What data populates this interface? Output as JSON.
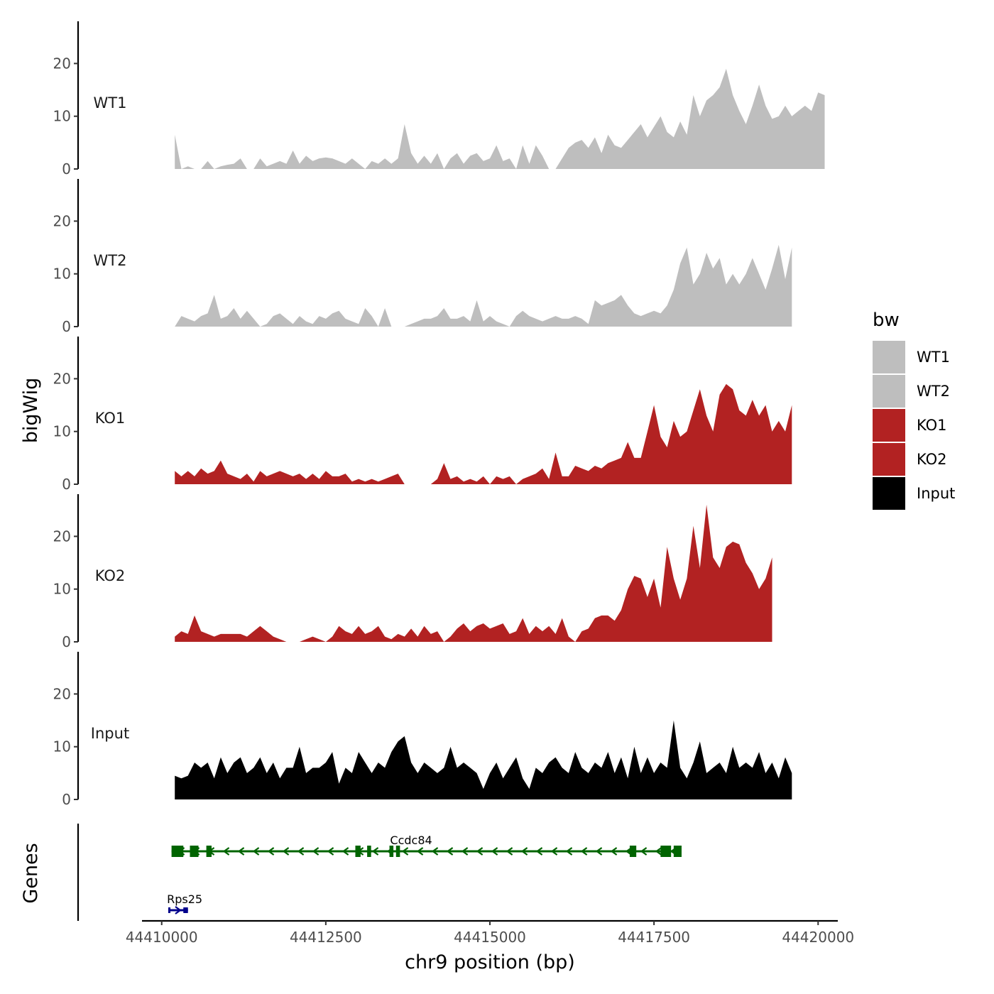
{
  "chart_data": {
    "type": "area",
    "title": "",
    "xlabel": "chr9 position (bp)",
    "ylabel": "bigWig",
    "genes_label": "Genes",
    "xlim": [
      44409700,
      44420300
    ],
    "xticks": [
      44410000,
      44412500,
      44415000,
      44417500,
      44420000
    ],
    "xtick_labels": [
      "44410000",
      "44412500",
      "44415000",
      "44417500",
      "44420000"
    ],
    "ylim": [
      0,
      28
    ],
    "yticks": [
      0,
      10,
      20
    ],
    "ytick_labels": [
      "0",
      "10",
      "20"
    ],
    "legend": {
      "title": "bw",
      "position": "right",
      "entries": [
        {
          "label": "WT1",
          "color": "#bebebe"
        },
        {
          "label": "WT2",
          "color": "#bebebe"
        },
        {
          "label": "KO1",
          "color": "#b22222"
        },
        {
          "label": "KO2",
          "color": "#b22222"
        },
        {
          "label": "Input",
          "color": "#000000"
        }
      ]
    },
    "series": [
      {
        "name": "WT1",
        "color": "#bebebe",
        "x_start": 44410200,
        "x_step": 100,
        "values": [
          6.5,
          0,
          0.5,
          0,
          0,
          1.5,
          0,
          0.5,
          0.8,
          1,
          2,
          0,
          0,
          2,
          0.5,
          1,
          1.5,
          1,
          3.5,
          1,
          2.5,
          1.5,
          2,
          2.2,
          2,
          1.5,
          1,
          2,
          1,
          0,
          1.5,
          1,
          2,
          1,
          2,
          8.5,
          3,
          1,
          2.5,
          1,
          3,
          0,
          2,
          3,
          1,
          2.5,
          3,
          1.5,
          2,
          4.5,
          1.5,
          2,
          0,
          4.5,
          1,
          4.5,
          2.5,
          0,
          0,
          2,
          4,
          5,
          5.5,
          4,
          6,
          3,
          6.5,
          4.5,
          4,
          5.5,
          7,
          8.5,
          6,
          8,
          10,
          7,
          6,
          9,
          6.5,
          14,
          10,
          13,
          14,
          15.5,
          19,
          14,
          11,
          8.5,
          12,
          16,
          12,
          9.5,
          10,
          12,
          10,
          11,
          12,
          11,
          14.5,
          14
        ]
      },
      {
        "name": "WT2",
        "color": "#bebebe",
        "x_start": 44410200,
        "x_step": 100,
        "values": [
          0,
          2,
          1.5,
          1,
          2,
          2.5,
          6,
          1.5,
          2,
          3.5,
          1.5,
          3,
          1.5,
          0,
          0.5,
          2,
          2.5,
          1.5,
          0.5,
          2,
          1,
          0.5,
          2,
          1.5,
          2.5,
          3,
          1.5,
          1,
          0.5,
          3.5,
          2,
          0,
          3.5,
          0,
          0,
          0,
          0.5,
          1,
          1.5,
          1.5,
          2,
          3.5,
          1.5,
          1.5,
          2,
          1,
          5,
          1,
          2,
          1,
          0.5,
          0,
          2,
          3,
          2,
          1.5,
          1,
          1.5,
          2,
          1.5,
          1.5,
          2,
          1.5,
          0.5,
          5,
          4,
          4.5,
          5,
          6,
          4,
          2.5,
          2,
          2.5,
          3,
          2.5,
          4,
          7,
          12,
          15,
          8,
          10,
          14,
          11,
          13,
          8,
          10,
          8,
          10,
          13,
          10,
          7,
          11,
          15.5,
          9,
          15
        ]
      },
      {
        "name": "KO1",
        "color": "#b22222",
        "x_start": 44410200,
        "x_step": 100,
        "values": [
          2.5,
          1.5,
          2.5,
          1.5,
          3,
          2,
          2.5,
          4.5,
          2,
          1.5,
          1,
          2,
          0.5,
          2.5,
          1.5,
          2,
          2.5,
          2,
          1.5,
          2,
          1,
          2,
          1,
          2.5,
          1.5,
          1.5,
          2,
          0.5,
          1,
          0.5,
          1,
          0.5,
          1,
          1.5,
          2,
          0,
          0,
          0,
          0,
          0,
          1,
          4,
          1,
          1.5,
          0.5,
          1,
          0.5,
          1.5,
          0,
          1.5,
          1,
          1.5,
          0,
          1,
          1.5,
          2,
          3,
          1,
          6,
          1.5,
          1.5,
          3.5,
          3,
          2.5,
          3.5,
          3,
          4,
          4.5,
          5,
          8,
          5,
          5,
          10,
          15,
          9,
          7,
          12,
          9,
          10,
          14,
          18,
          13,
          10,
          17,
          19,
          18,
          14,
          13,
          16,
          13,
          15,
          10,
          12,
          10,
          15
        ]
      },
      {
        "name": "KO2",
        "color": "#b22222",
        "x_start": 44410200,
        "x_step": 100,
        "values": [
          1,
          2,
          1.5,
          5,
          2,
          1.5,
          1,
          1.5,
          1.5,
          1.5,
          1.5,
          1,
          2,
          3,
          2,
          1,
          0.5,
          0,
          0,
          0,
          0.5,
          1,
          0.5,
          0,
          1,
          3,
          2,
          1.5,
          3,
          1.5,
          2,
          3,
          1,
          0.5,
          1.5,
          1,
          2.5,
          1,
          3,
          1.5,
          2,
          0,
          1,
          2.5,
          3.5,
          2,
          3,
          3.5,
          2.5,
          3,
          3.5,
          1.5,
          2,
          4.5,
          1.5,
          3,
          2,
          3,
          1.5,
          4.5,
          1,
          0,
          2,
          2.5,
          4.5,
          5,
          5,
          4,
          6,
          10,
          12.5,
          12,
          8.5,
          12,
          6.5,
          18,
          12,
          8,
          12,
          22,
          14,
          26,
          16,
          14,
          18,
          19,
          18.5,
          15,
          13,
          10,
          12,
          16
        ]
      },
      {
        "name": "Input",
        "color": "#000000",
        "x_start": 44410200,
        "x_step": 100,
        "values": [
          4.5,
          4,
          4.5,
          7,
          6,
          7,
          4,
          8,
          5,
          7,
          8,
          5,
          6,
          8,
          5,
          7,
          4,
          6,
          6,
          10,
          5,
          6,
          6,
          7,
          9,
          3,
          6,
          5,
          9,
          7,
          5,
          7,
          6,
          9,
          11,
          12,
          7,
          5,
          7,
          6,
          5,
          6,
          10,
          6,
          7,
          6,
          5,
          2,
          5,
          7,
          4,
          6,
          8,
          4,
          2,
          6,
          5,
          7,
          8,
          6,
          5,
          9,
          6,
          5,
          7,
          6,
          9,
          5,
          8,
          4,
          10,
          5,
          8,
          5,
          7,
          6,
          15,
          6,
          4,
          7,
          11,
          5,
          6,
          7,
          5,
          10,
          6,
          7,
          6,
          9,
          5,
          7,
          4,
          8,
          5
        ]
      }
    ],
    "genes": [
      {
        "name": "Ccdc84",
        "strand": "-",
        "color": "#006400",
        "row": 1,
        "start": 44410150,
        "end": 44417900,
        "exons": [
          [
            44410150,
            44410330
          ],
          [
            44410430,
            44410560
          ],
          [
            44410680,
            44410760
          ],
          [
            44412950,
            44413030
          ],
          [
            44413130,
            44413190
          ],
          [
            44413470,
            44413530
          ],
          [
            44413570,
            44413630
          ],
          [
            44417130,
            44417230
          ],
          [
            44417600,
            44417760
          ],
          [
            44417800,
            44417920
          ]
        ]
      },
      {
        "name": "Rps25",
        "strand": "+",
        "color": "#00008b",
        "row": 2,
        "start": 44410100,
        "end": 44410400,
        "exons": [
          [
            44410100,
            44410130
          ],
          [
            44410330,
            44410400
          ]
        ]
      }
    ]
  }
}
